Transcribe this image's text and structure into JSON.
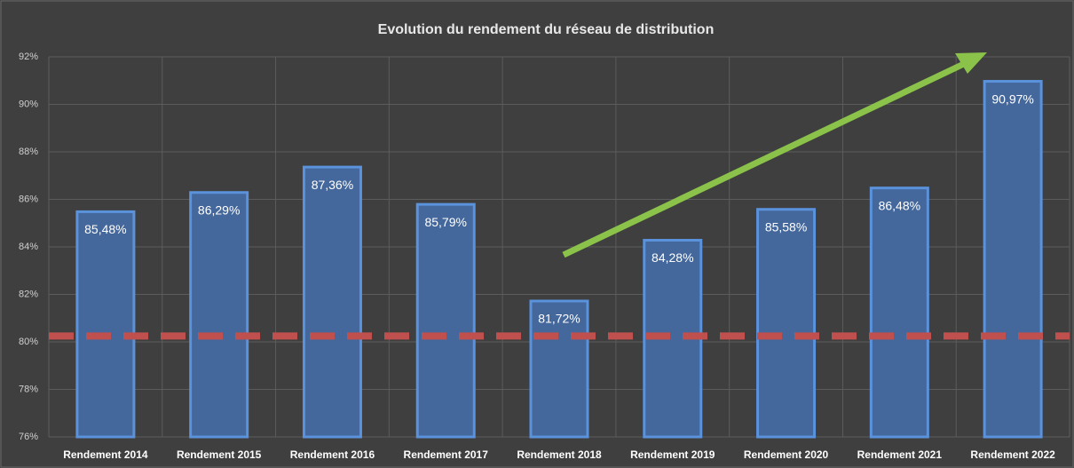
{
  "chart_data": {
    "type": "bar",
    "title": "Evolution du rendement du réseau de distribution",
    "categories": [
      "Rendement 2014",
      "Rendement 2015",
      "Rendement 2016",
      "Rendement 2017",
      "Rendement 2018",
      "Rendement 2019",
      "Rendement 2020",
      "Rendement 2021",
      "Rendement 2022"
    ],
    "values": [
      85.48,
      86.29,
      87.36,
      85.79,
      81.72,
      84.28,
      85.58,
      86.48,
      90.97
    ],
    "value_labels": [
      "85,48%",
      "86,29%",
      "87,36%",
      "85,79%",
      "81,72%",
      "84,28%",
      "85,58%",
      "86,48%",
      "90,97%"
    ],
    "color": "#44679c",
    "ylim": [
      76,
      92
    ],
    "yticks": [
      {
        "value": 76,
        "label": "76%"
      },
      {
        "value": 78,
        "label": "78%"
      },
      {
        "value": 80,
        "label": "80%"
      },
      {
        "value": 82,
        "label": "82%"
      },
      {
        "value": 84,
        "label": "84%"
      },
      {
        "value": 86,
        "label": "86%"
      },
      {
        "value": 88,
        "label": "88%"
      },
      {
        "value": 90,
        "label": "90%"
      },
      {
        "value": 92,
        "label": "92%"
      }
    ],
    "grid": true,
    "reference_line": 80.25,
    "reference_color": "#c0504d"
  }
}
